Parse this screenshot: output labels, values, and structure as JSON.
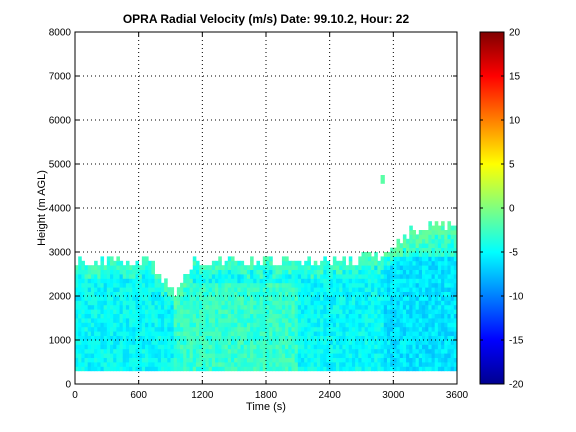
{
  "chart_data": {
    "type": "heatmap",
    "title": "OPRA Radial Velocity (m/s)  Date: 99.10.2, Hour: 22",
    "xlabel": "Time (s)",
    "ylabel": "Height (m AGL)",
    "xlim": [
      0,
      3600
    ],
    "ylim": [
      0,
      8000
    ],
    "xticks": [
      "0",
      "600",
      "1200",
      "1800",
      "2400",
      "3000",
      "3600"
    ],
    "yticks": [
      "0",
      "1000",
      "2000",
      "3000",
      "4000",
      "5000",
      "6000",
      "7000",
      "8000"
    ],
    "grid": true,
    "colormap": "jet",
    "clim": [
      -20,
      20
    ],
    "colorbar_ticks": [
      "-20",
      "-15",
      "-10",
      "-5",
      "0",
      "5",
      "10",
      "15",
      "20"
    ],
    "data_region": {
      "time_range_s": [
        0,
        3600
      ],
      "bottom_height_m": 300,
      "top_height_profile": {
        "time_s": [
          0,
          300,
          600,
          750,
          850,
          900,
          950,
          1000,
          1050,
          1150,
          1200,
          1500,
          1800,
          2100,
          2400,
          2700,
          2900,
          3000,
          3150,
          3300,
          3450,
          3600
        ],
        "height_m": [
          2700,
          2750,
          2800,
          2650,
          2300,
          2150,
          2050,
          2200,
          2500,
          2800,
          2800,
          2750,
          2800,
          2750,
          2750,
          2800,
          2850,
          3100,
          3400,
          3550,
          3500,
          3550
        ]
      },
      "velocity_range_ms": [
        -8,
        -1
      ],
      "isolated_echo": {
        "time_s": [
          2880,
          2920
        ],
        "height_m": [
          4550,
          4750
        ]
      }
    }
  }
}
